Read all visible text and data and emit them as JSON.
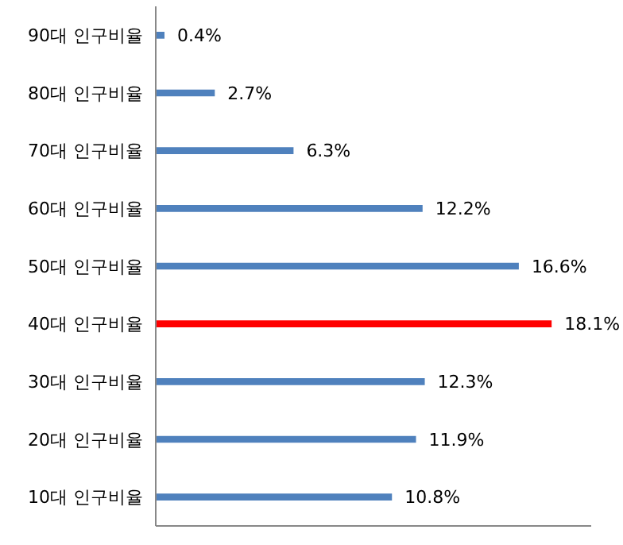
{
  "chart_data": {
    "type": "bar",
    "orientation": "horizontal",
    "categories": [
      "90대 인구비율",
      "80대 인구비율",
      "70대 인구비율",
      "60대 인구비율",
      "50대 인구비율",
      "40대 인구비율",
      "30대 인구비율",
      "20대 인구비율",
      "10대 인구비율"
    ],
    "values": [
      0.4,
      2.7,
      6.3,
      12.2,
      16.6,
      18.1,
      12.3,
      11.9,
      10.8
    ],
    "colors": [
      "#4f81bd",
      "#4f81bd",
      "#4f81bd",
      "#4f81bd",
      "#4f81bd",
      "#ff0000",
      "#4f81bd",
      "#4f81bd",
      "#4f81bd"
    ],
    "value_labels": [
      "0.4%",
      "2.7%",
      "6.3%",
      "12.2%",
      "16.6%",
      "18.1%",
      "12.3%",
      "11.9%",
      "10.8%"
    ],
    "tick_labels": "y"
  }
}
